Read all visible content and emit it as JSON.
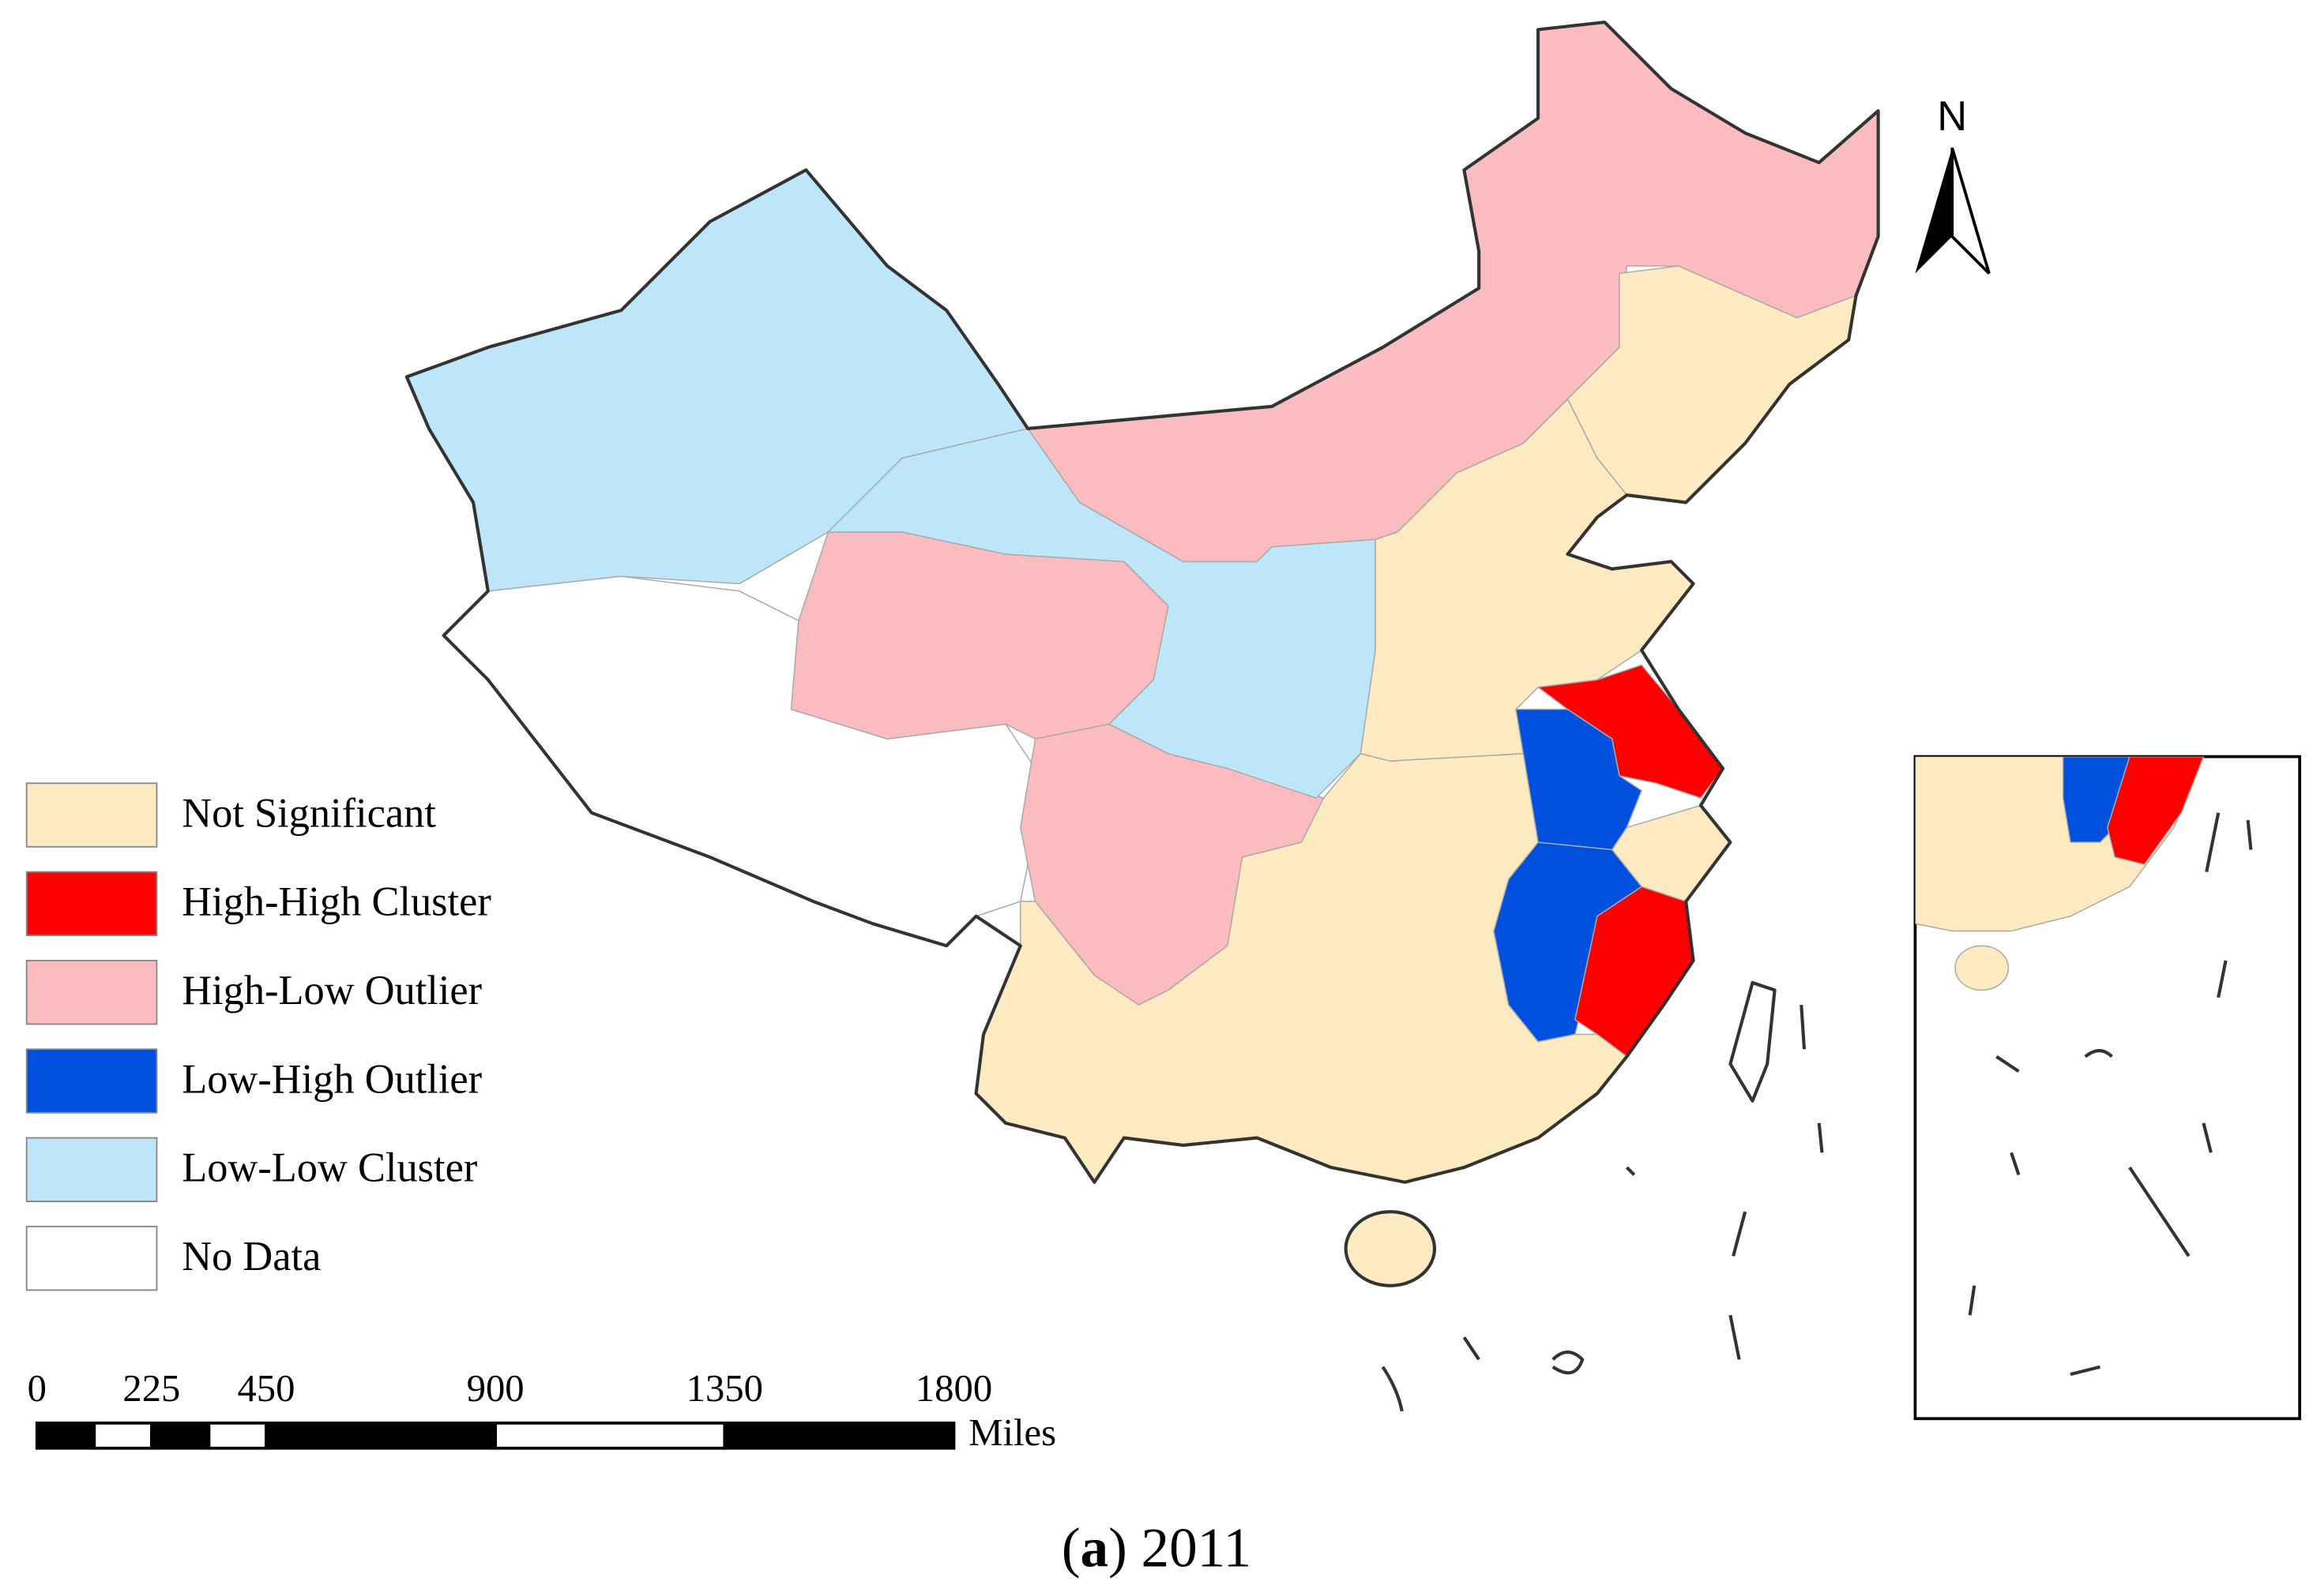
{
  "map": {
    "legend": [
      {
        "label": "Not Significant",
        "color": "#fdeac0"
      },
      {
        "label": "High-High Cluster",
        "color": "#ff0000"
      },
      {
        "label": "High-Low Outlier",
        "color": "#fbbcc0"
      },
      {
        "label": "Low-High Outlier",
        "color": "#0050e0"
      },
      {
        "label": "Low-Low Cluster",
        "color": "#bee6fb"
      },
      {
        "label": "No Data",
        "color": "#ffffff"
      }
    ],
    "north": "N",
    "scale_bar": {
      "ticks": [
        0,
        225,
        450,
        900,
        1350,
        1800
      ],
      "unit": "Miles"
    },
    "caption": {
      "open": "(",
      "letter": "a",
      "rest": ") 2011"
    }
  }
}
